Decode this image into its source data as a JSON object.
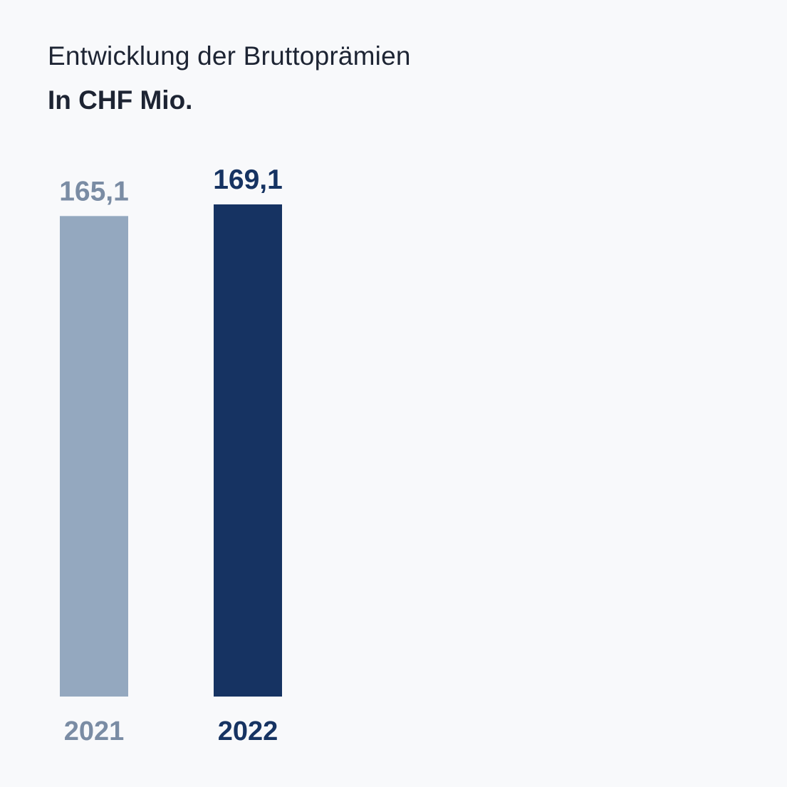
{
  "chart_data": {
    "type": "bar",
    "title": "Entwicklung der Bruttoprämien",
    "subtitle": "In CHF Mio.",
    "categories": [
      "2021",
      "2022"
    ],
    "values": [
      165.1,
      169.1
    ],
    "value_labels": [
      "165,1",
      "169,1"
    ],
    "colors": [
      "#94a8bf",
      "#163362"
    ],
    "label_colors": [
      "#7a8ca4",
      "#163362"
    ],
    "xlabel": "",
    "ylabel": "",
    "ylim": [
      0,
      169.1
    ],
    "grid": false,
    "legend": "none"
  }
}
